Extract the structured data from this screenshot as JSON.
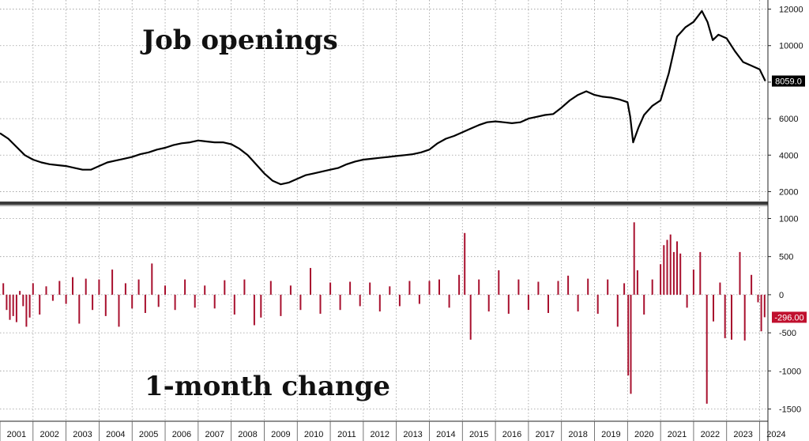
{
  "chart_data": [
    {
      "type": "line",
      "title": "Job openings",
      "last_value_label": "8059.0",
      "x_range": [
        2001.0,
        2024.25
      ],
      "ylim": [
        1500,
        12500
      ],
      "yticks": [
        2000,
        4000,
        6000,
        8000,
        10000,
        12000
      ],
      "grid": true,
      "colors": {
        "line": "#000000",
        "label_bg": "#000000",
        "label_text": "#ffffff"
      },
      "series": [
        {
          "points": [
            [
              2001.0,
              5200
            ],
            [
              2001.25,
              4900
            ],
            [
              2001.5,
              4450
            ],
            [
              2001.75,
              4000
            ],
            [
              2002.0,
              3750
            ],
            [
              2002.25,
              3600
            ],
            [
              2002.5,
              3500
            ],
            [
              2002.75,
              3450
            ],
            [
              2003.0,
              3400
            ],
            [
              2003.25,
              3300
            ],
            [
              2003.5,
              3200
            ],
            [
              2003.75,
              3200
            ],
            [
              2004.0,
              3400
            ],
            [
              2004.25,
              3600
            ],
            [
              2004.5,
              3700
            ],
            [
              2004.75,
              3800
            ],
            [
              2005.0,
              3900
            ],
            [
              2005.25,
              4050
            ],
            [
              2005.5,
              4150
            ],
            [
              2005.75,
              4300
            ],
            [
              2006.0,
              4400
            ],
            [
              2006.25,
              4550
            ],
            [
              2006.5,
              4650
            ],
            [
              2006.75,
              4700
            ],
            [
              2007.0,
              4800
            ],
            [
              2007.25,
              4750
            ],
            [
              2007.5,
              4700
            ],
            [
              2007.75,
              4700
            ],
            [
              2008.0,
              4600
            ],
            [
              2008.25,
              4350
            ],
            [
              2008.5,
              4000
            ],
            [
              2008.75,
              3500
            ],
            [
              2009.0,
              3000
            ],
            [
              2009.25,
              2600
            ],
            [
              2009.5,
              2400
            ],
            [
              2009.75,
              2500
            ],
            [
              2010.0,
              2700
            ],
            [
              2010.25,
              2900
            ],
            [
              2010.5,
              3000
            ],
            [
              2010.75,
              3100
            ],
            [
              2011.0,
              3200
            ],
            [
              2011.25,
              3300
            ],
            [
              2011.5,
              3500
            ],
            [
              2011.75,
              3650
            ],
            [
              2012.0,
              3750
            ],
            [
              2012.25,
              3800
            ],
            [
              2012.5,
              3850
            ],
            [
              2012.75,
              3900
            ],
            [
              2013.0,
              3950
            ],
            [
              2013.25,
              4000
            ],
            [
              2013.5,
              4050
            ],
            [
              2013.75,
              4150
            ],
            [
              2014.0,
              4300
            ],
            [
              2014.25,
              4650
            ],
            [
              2014.5,
              4900
            ],
            [
              2014.75,
              5050
            ],
            [
              2015.0,
              5250
            ],
            [
              2015.25,
              5450
            ],
            [
              2015.5,
              5650
            ],
            [
              2015.75,
              5800
            ],
            [
              2016.0,
              5850
            ],
            [
              2016.25,
              5800
            ],
            [
              2016.5,
              5750
            ],
            [
              2016.75,
              5800
            ],
            [
              2017.0,
              6000
            ],
            [
              2017.25,
              6100
            ],
            [
              2017.5,
              6200
            ],
            [
              2017.75,
              6250
            ],
            [
              2018.0,
              6600
            ],
            [
              2018.25,
              7000
            ],
            [
              2018.5,
              7300
            ],
            [
              2018.75,
              7500
            ],
            [
              2019.0,
              7300
            ],
            [
              2019.25,
              7200
            ],
            [
              2019.5,
              7150
            ],
            [
              2019.75,
              7050
            ],
            [
              2020.0,
              6900
            ],
            [
              2020.08,
              6100
            ],
            [
              2020.17,
              4700
            ],
            [
              2020.33,
              5500
            ],
            [
              2020.5,
              6200
            ],
            [
              2020.75,
              6700
            ],
            [
              2021.0,
              7000
            ],
            [
              2021.25,
              8500
            ],
            [
              2021.5,
              10500
            ],
            [
              2021.75,
              11000
            ],
            [
              2022.0,
              11300
            ],
            [
              2022.25,
              11900
            ],
            [
              2022.42,
              11300
            ],
            [
              2022.58,
              10300
            ],
            [
              2022.75,
              10600
            ],
            [
              2023.0,
              10400
            ],
            [
              2023.25,
              9700
            ],
            [
              2023.5,
              9100
            ],
            [
              2023.75,
              8900
            ],
            [
              2024.0,
              8700
            ],
            [
              2024.17,
              8059
            ]
          ]
        }
      ]
    },
    {
      "type": "bar",
      "title": "1-month change",
      "last_value_label": "-296.00",
      "x_range": [
        2001.0,
        2024.25
      ],
      "ylim": [
        -1650,
        1150
      ],
      "yticks": [
        -1500,
        -1000,
        -500,
        0,
        500,
        1000
      ],
      "grid": true,
      "colors": {
        "bar": "#a8102e",
        "label_bg": "#c0102e",
        "label_text": "#ffffff"
      },
      "bars": [
        [
          2001.1,
          150
        ],
        [
          2001.2,
          -200
        ],
        [
          2001.3,
          -330
        ],
        [
          2001.4,
          -280
        ],
        [
          2001.5,
          -360
        ],
        [
          2001.6,
          50
        ],
        [
          2001.7,
          -150
        ],
        [
          2001.8,
          -420
        ],
        [
          2001.9,
          -300
        ],
        [
          2002.0,
          150
        ],
        [
          2002.2,
          -260
        ],
        [
          2002.4,
          110
        ],
        [
          2002.6,
          -80
        ],
        [
          2002.8,
          180
        ],
        [
          2003.0,
          -120
        ],
        [
          2003.2,
          230
        ],
        [
          2003.4,
          -380
        ],
        [
          2003.6,
          210
        ],
        [
          2003.8,
          -200
        ],
        [
          2004.0,
          200
        ],
        [
          2004.2,
          -280
        ],
        [
          2004.4,
          330
        ],
        [
          2004.6,
          -420
        ],
        [
          2004.8,
          150
        ],
        [
          2005.0,
          -180
        ],
        [
          2005.2,
          200
        ],
        [
          2005.4,
          -240
        ],
        [
          2005.6,
          410
        ],
        [
          2005.8,
          -160
        ],
        [
          2006.0,
          120
        ],
        [
          2006.3,
          -200
        ],
        [
          2006.6,
          200
        ],
        [
          2006.9,
          -170
        ],
        [
          2007.2,
          120
        ],
        [
          2007.5,
          -180
        ],
        [
          2007.8,
          190
        ],
        [
          2008.1,
          -260
        ],
        [
          2008.4,
          200
        ],
        [
          2008.7,
          -400
        ],
        [
          2008.9,
          -300
        ],
        [
          2009.2,
          180
        ],
        [
          2009.5,
          -280
        ],
        [
          2009.8,
          120
        ],
        [
          2010.1,
          -200
        ],
        [
          2010.4,
          350
        ],
        [
          2010.7,
          -250
        ],
        [
          2011.0,
          160
        ],
        [
          2011.3,
          -200
        ],
        [
          2011.6,
          170
        ],
        [
          2011.9,
          -150
        ],
        [
          2012.2,
          160
        ],
        [
          2012.5,
          -220
        ],
        [
          2012.8,
          110
        ],
        [
          2013.1,
          -150
        ],
        [
          2013.4,
          180
        ],
        [
          2013.7,
          -120
        ],
        [
          2014.0,
          180
        ],
        [
          2014.3,
          200
        ],
        [
          2014.6,
          -170
        ],
        [
          2014.9,
          260
        ],
        [
          2015.07,
          810
        ],
        [
          2015.25,
          -590
        ],
        [
          2015.5,
          200
        ],
        [
          2015.8,
          -220
        ],
        [
          2016.1,
          320
        ],
        [
          2016.4,
          -250
        ],
        [
          2016.7,
          200
        ],
        [
          2017.0,
          -200
        ],
        [
          2017.3,
          170
        ],
        [
          2017.6,
          -240
        ],
        [
          2017.9,
          180
        ],
        [
          2018.2,
          250
        ],
        [
          2018.5,
          -220
        ],
        [
          2018.8,
          210
        ],
        [
          2019.1,
          -250
        ],
        [
          2019.4,
          200
        ],
        [
          2019.7,
          -420
        ],
        [
          2019.9,
          150
        ],
        [
          2020.02,
          -1060
        ],
        [
          2020.1,
          -1300
        ],
        [
          2020.2,
          950
        ],
        [
          2020.3,
          320
        ],
        [
          2020.5,
          -260
        ],
        [
          2020.75,
          200
        ],
        [
          2021.0,
          400
        ],
        [
          2021.1,
          650
        ],
        [
          2021.2,
          720
        ],
        [
          2021.3,
          790
        ],
        [
          2021.4,
          560
        ],
        [
          2021.5,
          700
        ],
        [
          2021.6,
          540
        ],
        [
          2021.8,
          -170
        ],
        [
          2022.0,
          330
        ],
        [
          2022.2,
          560
        ],
        [
          2022.4,
          -1430
        ],
        [
          2022.6,
          -350
        ],
        [
          2022.8,
          160
        ],
        [
          2022.95,
          -570
        ],
        [
          2023.15,
          -590
        ],
        [
          2023.4,
          560
        ],
        [
          2023.55,
          -600
        ],
        [
          2023.75,
          260
        ],
        [
          2023.95,
          -100
        ],
        [
          2024.05,
          -480
        ],
        [
          2024.15,
          -296
        ]
      ]
    }
  ],
  "x_axis": {
    "years": [
      "2001",
      "2002",
      "2003",
      "2004",
      "2005",
      "2006",
      "2007",
      "2008",
      "2009",
      "2010",
      "2011",
      "2012",
      "2013",
      "2014",
      "2015",
      "2016",
      "2017",
      "2018",
      "2019",
      "2020",
      "2021",
      "2022",
      "2023",
      "2024"
    ]
  }
}
